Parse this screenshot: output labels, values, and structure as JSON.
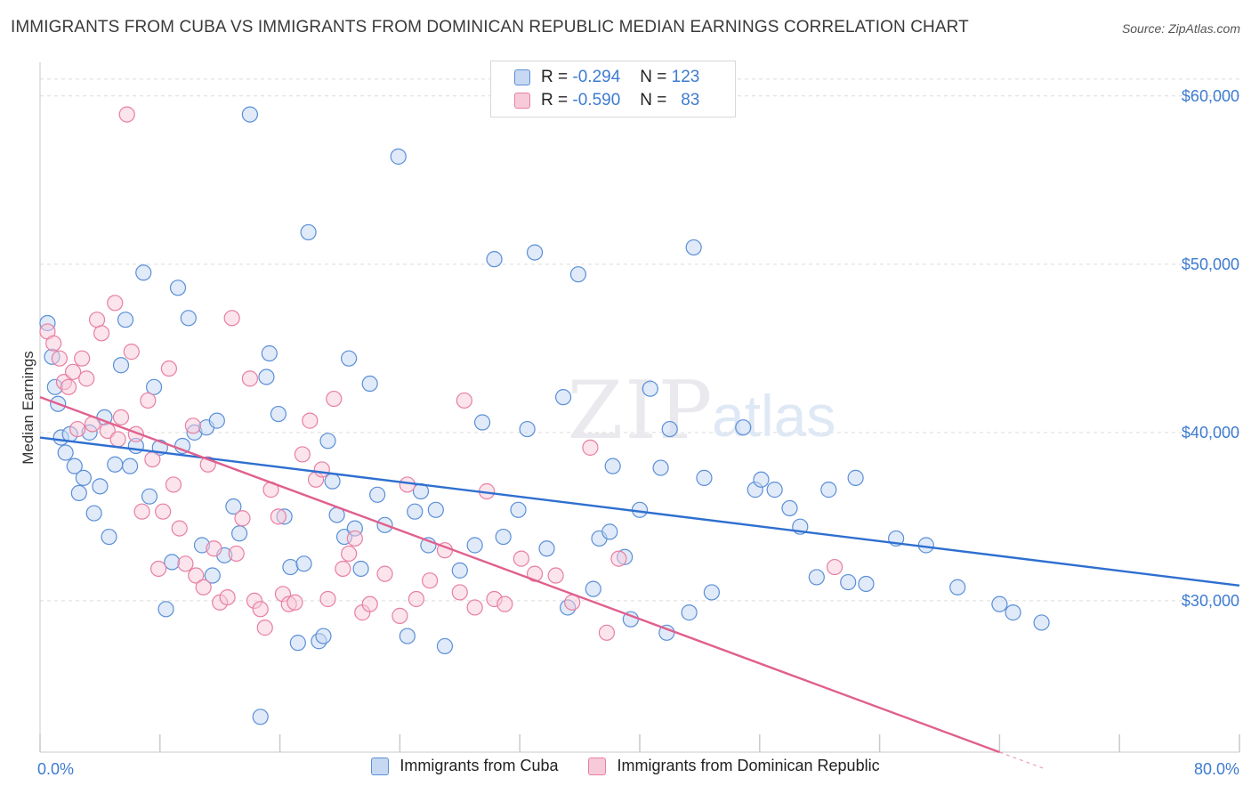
{
  "title": "IMMIGRANTS FROM CUBA VS IMMIGRANTS FROM DOMINICAN REPUBLIC MEDIAN EARNINGS CORRELATION CHART",
  "source": "Source: ZipAtlas.com",
  "legend": {
    "rows": [
      {
        "r_label": "R =",
        "r_value": "-0.294",
        "n_label": "N =",
        "n_value": "123"
      },
      {
        "r_label": "R =",
        "r_value": "-0.590",
        "n_label": "N =",
        "n_value": "83"
      }
    ]
  },
  "bottom_legend": [
    "Immigrants from Cuba",
    "Immigrants from Dominican Republic"
  ],
  "colors": {
    "cuba": "#5b8fd8",
    "cuba_fill": "#c6d8f2",
    "dom": "#e87fa2",
    "dom_fill": "#f7cad9",
    "cuba_line": "#2e6fd0",
    "dom_line": "#e0608e",
    "axis_text": "#3d7bd1"
  },
  "chart_data": {
    "type": "scatter",
    "title": "IMMIGRANTS FROM CUBA VS IMMIGRANTS FROM DOMINICAN REPUBLIC MEDIAN EARNINGS CORRELATION CHART",
    "xlabel": "",
    "ylabel": "Median Earnings",
    "xlim": [
      0,
      80
    ],
    "ylim": [
      21000,
      62000
    ],
    "x_tick_labels": [
      "0.0%",
      "80.0%"
    ],
    "y_ticks": [
      30000,
      40000,
      50000,
      60000
    ],
    "y_tick_labels": [
      "$30,000",
      "$40,000",
      "$50,000",
      "$60,000"
    ],
    "grid": true,
    "legend_position": "top-center",
    "series": [
      {
        "name": "Immigrants from Cuba",
        "trend": {
          "x": [
            0,
            80
          ],
          "y": [
            39700,
            30900
          ]
        },
        "points": [
          [
            0.5,
            46500
          ],
          [
            0.8,
            44500
          ],
          [
            1.0,
            42700
          ],
          [
            1.2,
            41700
          ],
          [
            1.4,
            39700
          ],
          [
            1.7,
            38800
          ],
          [
            2.0,
            39900
          ],
          [
            2.3,
            38000
          ],
          [
            2.6,
            36400
          ],
          [
            2.9,
            37300
          ],
          [
            3.3,
            40000
          ],
          [
            3.6,
            35200
          ],
          [
            4.0,
            36800
          ],
          [
            4.3,
            40900
          ],
          [
            4.6,
            33800
          ],
          [
            5.0,
            38100
          ],
          [
            5.4,
            44000
          ],
          [
            5.7,
            46700
          ],
          [
            6.0,
            38000
          ],
          [
            6.4,
            39200
          ],
          [
            6.9,
            49500
          ],
          [
            7.3,
            36200
          ],
          [
            7.6,
            42700
          ],
          [
            8.0,
            39100
          ],
          [
            8.4,
            29500
          ],
          [
            8.8,
            32300
          ],
          [
            9.2,
            48600
          ],
          [
            9.5,
            39200
          ],
          [
            9.9,
            46800
          ],
          [
            10.3,
            40000
          ],
          [
            10.8,
            33300
          ],
          [
            11.1,
            40300
          ],
          [
            11.5,
            31500
          ],
          [
            11.8,
            40700
          ],
          [
            12.3,
            32700
          ],
          [
            12.9,
            35600
          ],
          [
            13.3,
            34000
          ],
          [
            14.0,
            58900
          ],
          [
            14.7,
            23100
          ],
          [
            15.1,
            43300
          ],
          [
            15.3,
            44700
          ],
          [
            15.9,
            41100
          ],
          [
            16.3,
            35000
          ],
          [
            16.7,
            32000
          ],
          [
            17.2,
            27500
          ],
          [
            17.6,
            32200
          ],
          [
            17.9,
            51900
          ],
          [
            18.6,
            27600
          ],
          [
            18.9,
            27900
          ],
          [
            19.2,
            39500
          ],
          [
            19.5,
            37100
          ],
          [
            19.8,
            35100
          ],
          [
            20.3,
            33800
          ],
          [
            20.6,
            44400
          ],
          [
            21.0,
            34300
          ],
          [
            21.4,
            31900
          ],
          [
            22.0,
            42900
          ],
          [
            22.5,
            36300
          ],
          [
            23.0,
            34500
          ],
          [
            23.9,
            56400
          ],
          [
            24.5,
            27900
          ],
          [
            25.0,
            35300
          ],
          [
            25.4,
            36500
          ],
          [
            25.9,
            33300
          ],
          [
            26.4,
            35400
          ],
          [
            27.0,
            27300
          ],
          [
            28.0,
            31800
          ],
          [
            29.0,
            33300
          ],
          [
            29.5,
            40600
          ],
          [
            30.3,
            50300
          ],
          [
            30.9,
            33800
          ],
          [
            31.9,
            35400
          ],
          [
            32.5,
            40200
          ],
          [
            33.0,
            50700
          ],
          [
            33.8,
            33100
          ],
          [
            34.9,
            42100
          ],
          [
            35.2,
            29600
          ],
          [
            35.9,
            49400
          ],
          [
            36.9,
            30700
          ],
          [
            37.3,
            33700
          ],
          [
            38.0,
            34100
          ],
          [
            38.2,
            38000
          ],
          [
            39.0,
            32600
          ],
          [
            39.4,
            28900
          ],
          [
            40.0,
            35400
          ],
          [
            40.7,
            42600
          ],
          [
            41.4,
            37900
          ],
          [
            41.8,
            28100
          ],
          [
            42.0,
            40200
          ],
          [
            43.3,
            29300
          ],
          [
            43.6,
            51000
          ],
          [
            44.3,
            37300
          ],
          [
            44.8,
            30500
          ],
          [
            46.9,
            40300
          ],
          [
            47.7,
            36600
          ],
          [
            48.1,
            37200
          ],
          [
            49.0,
            36600
          ],
          [
            50.0,
            35500
          ],
          [
            50.7,
            34400
          ],
          [
            51.8,
            31400
          ],
          [
            52.6,
            36600
          ],
          [
            53.9,
            31100
          ],
          [
            54.4,
            37300
          ],
          [
            55.1,
            31000
          ],
          [
            57.1,
            33700
          ],
          [
            59.1,
            33300
          ],
          [
            61.2,
            30800
          ],
          [
            64.0,
            29800
          ],
          [
            64.9,
            29300
          ],
          [
            66.8,
            28700
          ]
        ]
      },
      {
        "name": "Immigrants from Dominican Republic",
        "trend": {
          "x": [
            0,
            64
          ],
          "y": [
            42100,
            21000
          ]
        },
        "points": [
          [
            0.5,
            46000
          ],
          [
            0.9,
            45300
          ],
          [
            1.3,
            44400
          ],
          [
            1.6,
            43000
          ],
          [
            1.9,
            42700
          ],
          [
            2.2,
            43600
          ],
          [
            2.5,
            40200
          ],
          [
            2.8,
            44400
          ],
          [
            3.1,
            43200
          ],
          [
            3.5,
            40500
          ],
          [
            3.8,
            46700
          ],
          [
            4.1,
            45900
          ],
          [
            4.5,
            40100
          ],
          [
            5.0,
            47700
          ],
          [
            5.2,
            39600
          ],
          [
            5.4,
            40900
          ],
          [
            5.8,
            58900
          ],
          [
            6.1,
            44800
          ],
          [
            6.4,
            39900
          ],
          [
            6.8,
            35300
          ],
          [
            7.2,
            41900
          ],
          [
            7.5,
            38400
          ],
          [
            7.9,
            31900
          ],
          [
            8.2,
            35300
          ],
          [
            8.6,
            43800
          ],
          [
            8.9,
            36900
          ],
          [
            9.3,
            34300
          ],
          [
            9.7,
            32200
          ],
          [
            10.2,
            40400
          ],
          [
            10.4,
            31500
          ],
          [
            10.9,
            30800
          ],
          [
            11.2,
            38100
          ],
          [
            11.6,
            33100
          ],
          [
            12.0,
            29900
          ],
          [
            12.5,
            30200
          ],
          [
            12.8,
            46800
          ],
          [
            13.1,
            32800
          ],
          [
            13.5,
            34900
          ],
          [
            14.0,
            43200
          ],
          [
            14.3,
            30000
          ],
          [
            14.7,
            29500
          ],
          [
            15.0,
            28400
          ],
          [
            15.4,
            36600
          ],
          [
            15.9,
            35000
          ],
          [
            16.2,
            30400
          ],
          [
            16.6,
            29800
          ],
          [
            17.0,
            29900
          ],
          [
            17.5,
            38700
          ],
          [
            18.0,
            40700
          ],
          [
            18.4,
            37200
          ],
          [
            18.8,
            37800
          ],
          [
            19.2,
            30100
          ],
          [
            19.6,
            42000
          ],
          [
            20.2,
            31900
          ],
          [
            20.6,
            32800
          ],
          [
            21.0,
            33700
          ],
          [
            21.5,
            29300
          ],
          [
            22.0,
            29800
          ],
          [
            23.0,
            31600
          ],
          [
            24.0,
            29100
          ],
          [
            24.5,
            36900
          ],
          [
            25.1,
            30100
          ],
          [
            26.0,
            31200
          ],
          [
            27.0,
            33000
          ],
          [
            28.0,
            30500
          ],
          [
            28.3,
            41900
          ],
          [
            29.0,
            29600
          ],
          [
            29.8,
            36500
          ],
          [
            30.3,
            30100
          ],
          [
            31.0,
            29800
          ],
          [
            32.1,
            32500
          ],
          [
            33.0,
            31600
          ],
          [
            34.4,
            31500
          ],
          [
            35.5,
            29900
          ],
          [
            36.7,
            39100
          ],
          [
            37.8,
            28100
          ],
          [
            38.6,
            32500
          ],
          [
            53.0,
            32000
          ]
        ]
      }
    ]
  }
}
